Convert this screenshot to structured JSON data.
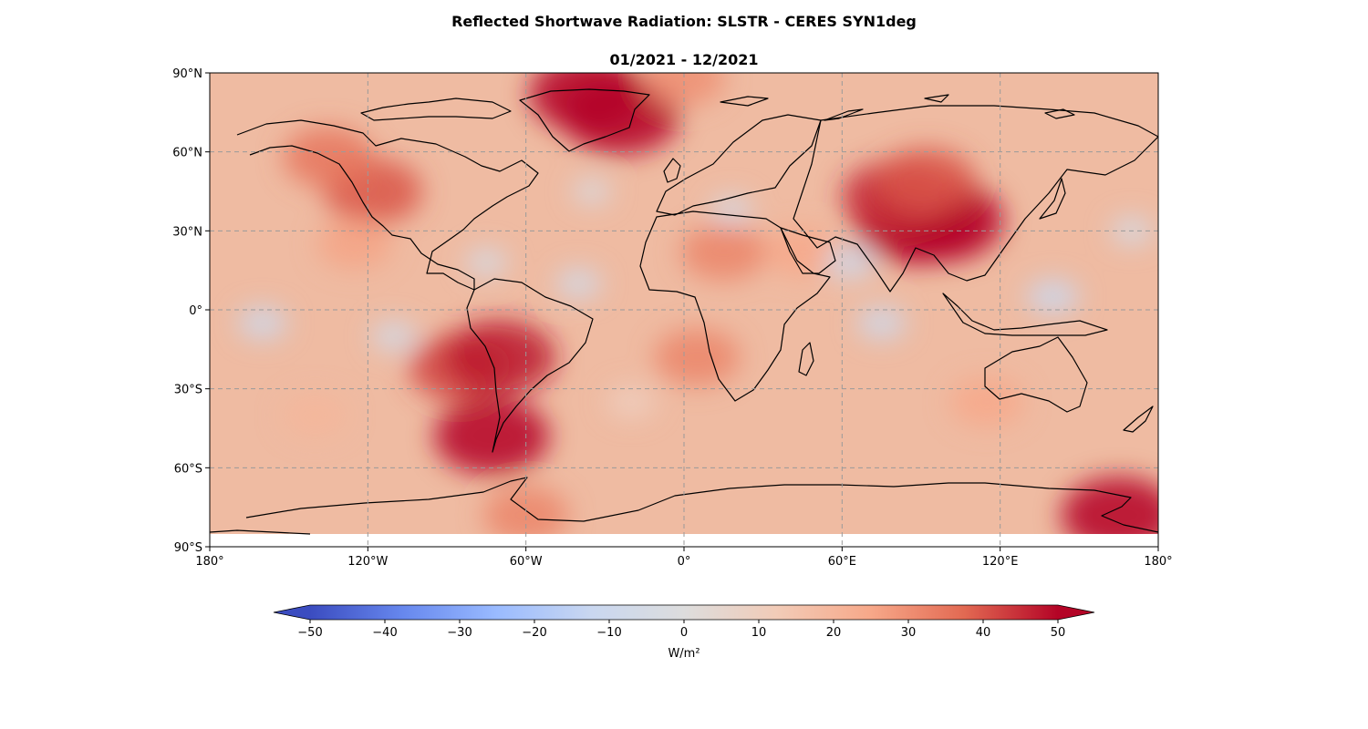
{
  "figure": {
    "title": "Reflected Shortwave Radiation: SLSTR - CERES SYN1deg",
    "subtitle": "01/2021 - 12/2021"
  },
  "map": {
    "projection": "PlateCarree",
    "extent": {
      "lon": [
        -180,
        180
      ],
      "lat": [
        -90,
        90
      ]
    },
    "lat_ticks": [
      {
        "value": 90,
        "label": "90°N"
      },
      {
        "value": 60,
        "label": "60°N"
      },
      {
        "value": 30,
        "label": "30°N"
      },
      {
        "value": 0,
        "label": "0°"
      },
      {
        "value": -30,
        "label": "30°S"
      },
      {
        "value": -60,
        "label": "60°S"
      },
      {
        "value": -90,
        "label": "90°S"
      }
    ],
    "lon_ticks": [
      {
        "value": -180,
        "label": "180°"
      },
      {
        "value": -120,
        "label": "120°W"
      },
      {
        "value": -60,
        "label": "60°W"
      },
      {
        "value": 0,
        "label": "0°"
      },
      {
        "value": 60,
        "label": "60°E"
      },
      {
        "value": 120,
        "label": "120°E"
      },
      {
        "value": 180,
        "label": "180°"
      }
    ],
    "gridlines": true,
    "coastlines": true,
    "background_color": "#efbba2",
    "anomalies": [
      {
        "name": "south-america-west",
        "lon": -85,
        "lat": -22,
        "value": 42
      },
      {
        "name": "andes",
        "lon": -70,
        "lat": -18,
        "value": 48
      },
      {
        "name": "patagonia",
        "lon": -73,
        "lat": -48,
        "value": 50
      },
      {
        "name": "tibet",
        "lon": 88,
        "lat": 33,
        "value": 55
      },
      {
        "name": "qinghai",
        "lon": 98,
        "lat": 34,
        "value": 55
      },
      {
        "name": "tianshan",
        "lon": 80,
        "lat": 43,
        "value": 45
      },
      {
        "name": "altai",
        "lon": 92,
        "lat": 49,
        "value": 40
      },
      {
        "name": "greenland-east",
        "lon": -24,
        "lat": 74,
        "value": 52
      },
      {
        "name": "greenland-north",
        "lon": -37,
        "lat": 82,
        "value": 50
      },
      {
        "name": "rockies",
        "lon": -118,
        "lat": 45,
        "value": 40
      },
      {
        "name": "alaska",
        "lon": -135,
        "lat": 58,
        "value": 35
      },
      {
        "name": "sahara",
        "lon": 15,
        "lat": 22,
        "value": 32
      },
      {
        "name": "arabia",
        "lon": 45,
        "lat": 22,
        "value": 25
      },
      {
        "name": "namibia-coast",
        "lon": 5,
        "lat": -18,
        "value": 32
      },
      {
        "name": "california-coast",
        "lon": -125,
        "lat": 25,
        "value": 26
      },
      {
        "name": "ross-sea",
        "lon": 165,
        "lat": -78,
        "value": 50
      },
      {
        "name": "antarctic-coast",
        "lon": -60,
        "lat": -78,
        "value": 32
      },
      {
        "name": "australia-south",
        "lon": 115,
        "lat": -35,
        "value": 25
      },
      {
        "name": "south-pacific",
        "lon": -140,
        "lat": -40,
        "value": 20
      },
      {
        "name": "arctic-cap",
        "lon": 0,
        "lat": 88,
        "value": 30
      },
      {
        "name": "equatorial-pacific",
        "lon": -160,
        "lat": -5,
        "value": -10
      },
      {
        "name": "east-pacific",
        "lon": -110,
        "lat": -10,
        "value": -8
      },
      {
        "name": "atlantic-tropics",
        "lon": -40,
        "lat": 10,
        "value": -8
      },
      {
        "name": "indian-ocean",
        "lon": 75,
        "lat": -5,
        "value": -10
      },
      {
        "name": "warm-pool",
        "lon": 140,
        "lat": 5,
        "value": -12
      },
      {
        "name": "arabian-sea",
        "lon": 63,
        "lat": 18,
        "value": -10
      },
      {
        "name": "mediterranean",
        "lon": 18,
        "lat": 38,
        "value": -6
      },
      {
        "name": "caribbean",
        "lon": -75,
        "lat": 18,
        "value": -6
      },
      {
        "name": "north-atlantic",
        "lon": -35,
        "lat": 45,
        "value": -4
      },
      {
        "name": "north-pacific",
        "lon": 170,
        "lat": 30,
        "value": -6
      },
      {
        "name": "south-atlantic",
        "lon": -20,
        "lat": -35,
        "value": 10
      }
    ]
  },
  "colorbar": {
    "min": -50,
    "max": 50,
    "ticks": [
      -50,
      -40,
      -30,
      -20,
      -10,
      0,
      10,
      20,
      30,
      40,
      50
    ],
    "tick_labels": [
      "−50",
      "−40",
      "−30",
      "−20",
      "−10",
      "0",
      "10",
      "20",
      "30",
      "40",
      "50"
    ],
    "label": "W/m²",
    "extend": "both",
    "colormap": "coolwarm",
    "stops": [
      "#3b4cc0",
      "#6788ee",
      "#9abbff",
      "#c9d7f0",
      "#dddddd",
      "#f2cbb7",
      "#f7a889",
      "#e26952",
      "#b40426"
    ]
  }
}
